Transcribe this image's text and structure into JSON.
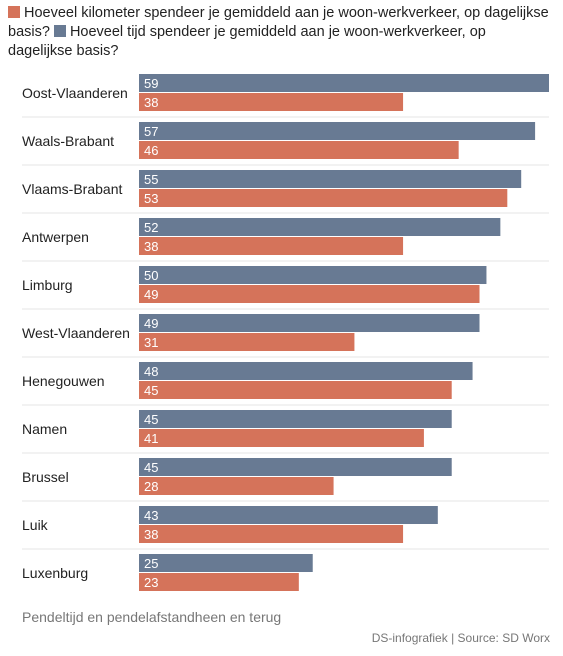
{
  "legend": [
    {
      "label": "Hoeveel kilometer spendeer je gemiddeld aan je woon-werkverkeer, op dagelijkse basis?",
      "color": "#d5735a"
    },
    {
      "label": "Hoeveel tijd spendeer je gemiddeld aan je woon-werkverkeer, op dagelijkse basis?",
      "color": "#687a93"
    }
  ],
  "subtitle": "Pendeltijd en pendelafstandheen en terug",
  "source": "DS-infografiek | Source: SD Worx",
  "chart_data": {
    "type": "bar",
    "orientation": "horizontal",
    "categories": [
      "Oost-Vlaanderen",
      "Waals-Brabant",
      "Vlaams-Brabant",
      "Antwerpen",
      "Limburg",
      "West-Vlaanderen",
      "Henegouwen",
      "Namen",
      "Brussel",
      "Luik",
      "Luxenburg"
    ],
    "series": [
      {
        "name": "Hoeveel tijd spendeer je gemiddeld aan je woon-werkverkeer, op dagelijkse basis?",
        "color": "#687a93",
        "values": [
          59,
          57,
          55,
          52,
          50,
          49,
          48,
          45,
          45,
          43,
          25
        ]
      },
      {
        "name": "Hoeveel kilometer spendeer je gemiddeld aan je woon-werkverkeer, op dagelijkse basis?",
        "color": "#d5735a",
        "values": [
          38,
          46,
          53,
          38,
          49,
          31,
          45,
          41,
          28,
          38,
          23
        ]
      }
    ],
    "xlim": [
      0,
      59
    ],
    "grid": false,
    "legend_position": "top"
  }
}
